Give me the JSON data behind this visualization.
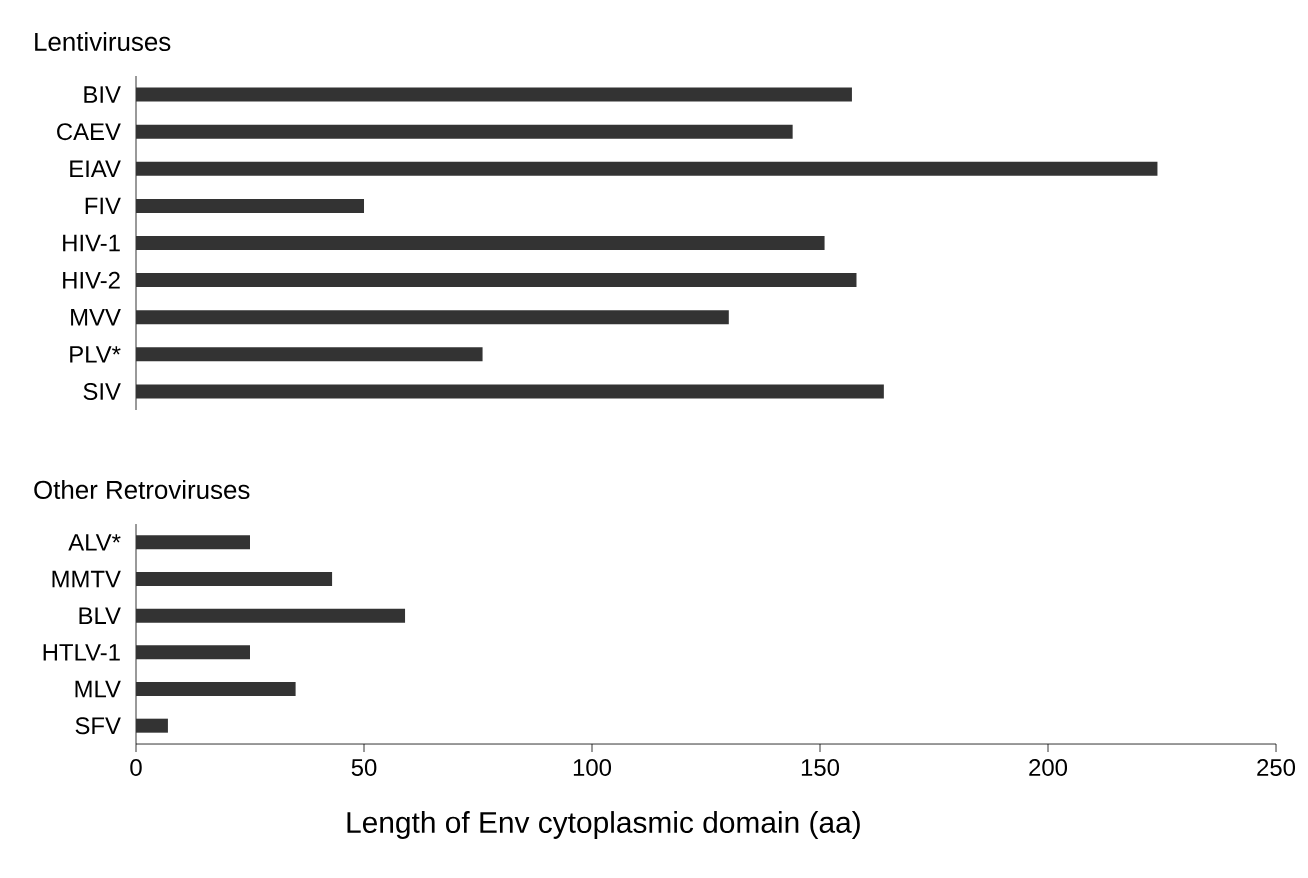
{
  "chart_data": [
    {
      "type": "bar",
      "orientation": "horizontal",
      "title": "Lentiviruses",
      "categories": [
        "BIV",
        "CAEV",
        "EIAV",
        "FIV",
        "HIV-1",
        "HIV-2",
        "MVV",
        "PLV*",
        "SIV"
      ],
      "values": [
        157,
        144,
        224,
        50,
        151,
        158,
        130,
        76,
        164
      ],
      "color": "#333333",
      "xlim": [
        0,
        250
      ],
      "xticks": [
        0,
        50,
        100,
        150,
        200,
        250
      ],
      "tick_labels": "y"
    },
    {
      "type": "bar",
      "orientation": "horizontal",
      "title": "Other Retroviruses",
      "categories": [
        "ALV*",
        "MMTV",
        "BLV",
        "HTLV-1",
        "MLV",
        "SFV"
      ],
      "values": [
        25,
        43,
        59,
        25,
        35,
        7
      ],
      "color": "#333333",
      "xlim": [
        0,
        250
      ],
      "xticks": [
        0,
        50,
        100,
        150,
        200,
        250
      ],
      "xlabel": "Length of Env cytoplasmic domain (aa)"
    }
  ]
}
